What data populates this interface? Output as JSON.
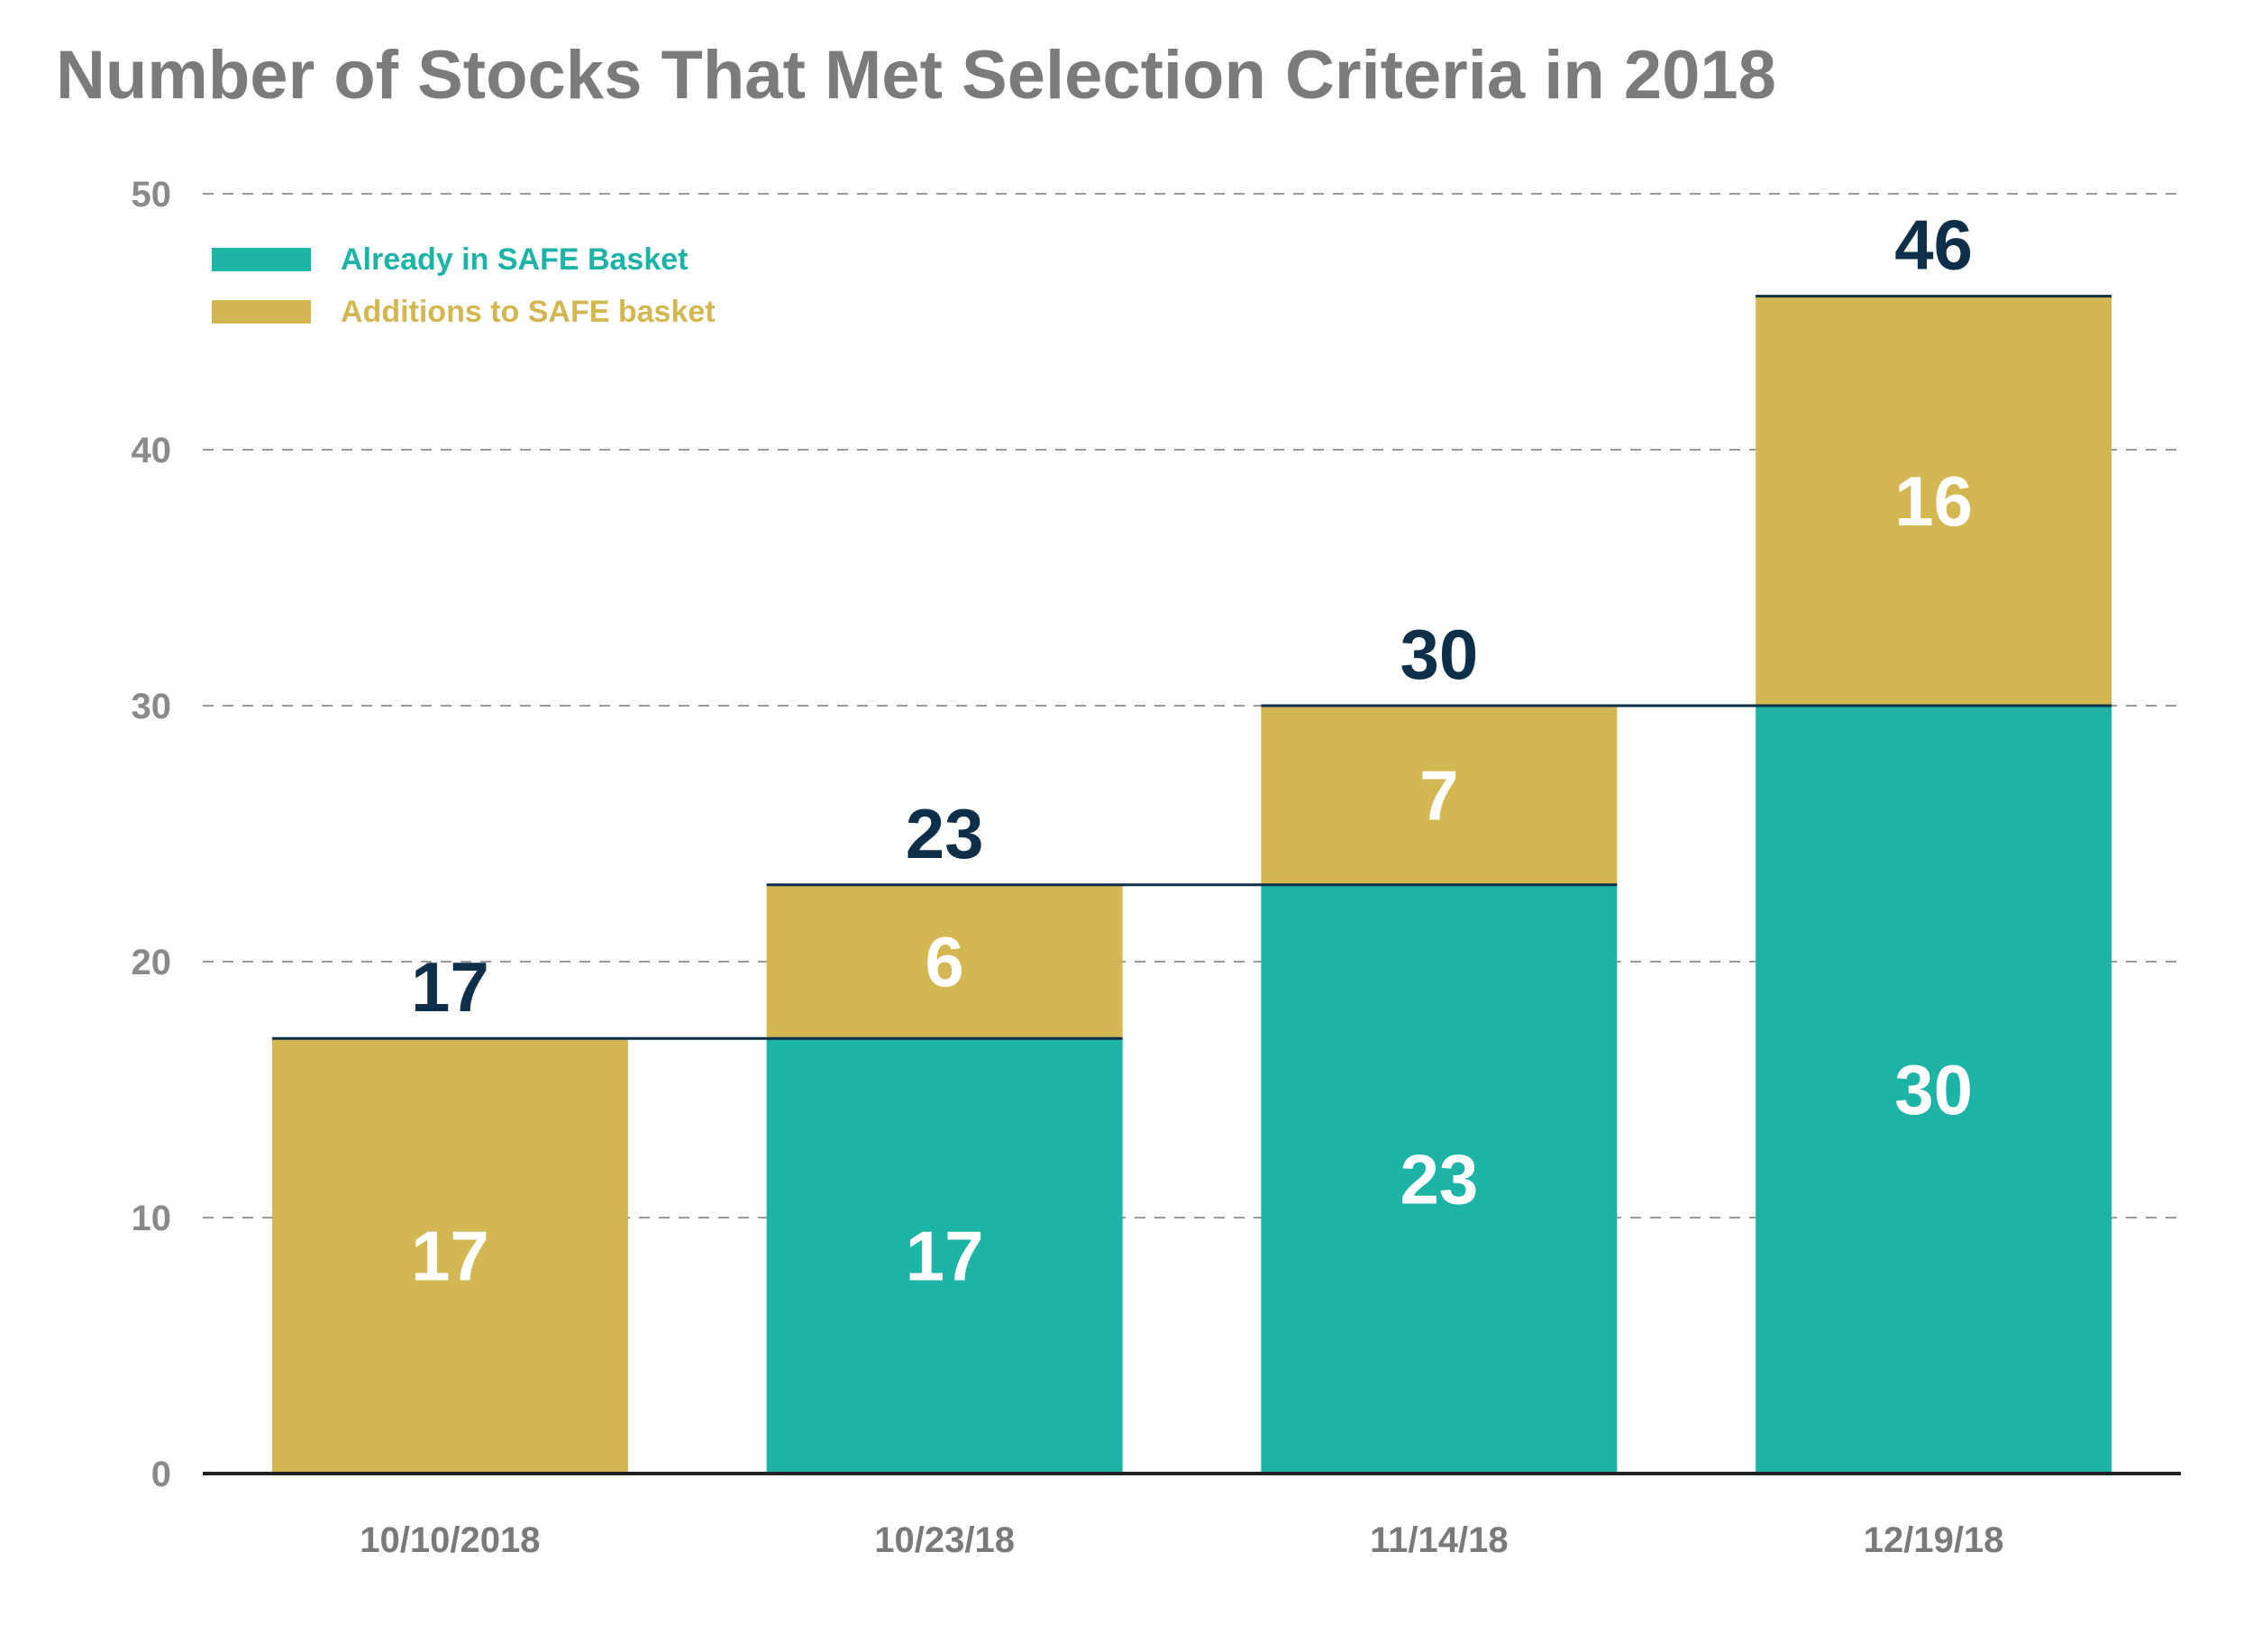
{
  "chart_data": {
    "type": "bar",
    "stacked": true,
    "title": "Number of Stocks That Met Selection Criteria in 2018",
    "xlabel": "",
    "ylabel": "",
    "ylim": [
      0,
      50
    ],
    "yticks": [
      0,
      10,
      20,
      30,
      40,
      50
    ],
    "grid": true,
    "legend_position": "top-left",
    "categories": [
      "10/10/2018",
      "10/23/18",
      "11/14/18",
      "12/19/18"
    ],
    "series": [
      {
        "name": "Already in SAFE Basket",
        "color": "#1eb3a7",
        "values": [
          0,
          17,
          23,
          30
        ]
      },
      {
        "name": "Additions to SAFE basket",
        "color": "#d3b752",
        "values": [
          17,
          6,
          7,
          16
        ]
      }
    ],
    "totals": [
      17,
      23,
      30,
      46
    ],
    "colors": {
      "title": "#7b7b7b",
      "total_labels": "#0e2f4a",
      "segment_labels": "#ffffff",
      "axis_labels": "#8a8a8a"
    }
  }
}
